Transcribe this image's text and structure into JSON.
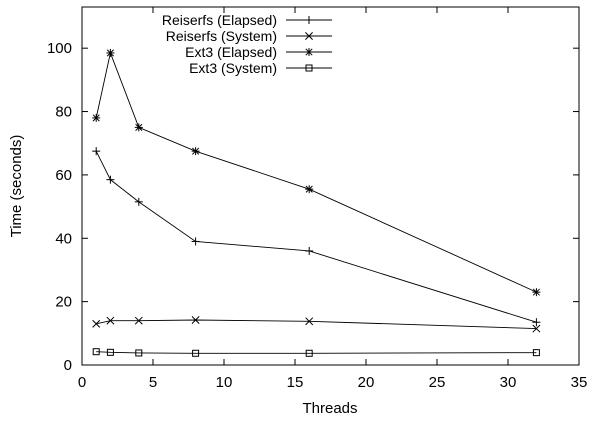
{
  "chart_data": {
    "type": "line",
    "title": "",
    "xlabel": "Threads",
    "ylabel": "Time (seconds)",
    "xlim": [
      0,
      35
    ],
    "ylim": [
      0,
      113
    ],
    "x_ticks": [
      0,
      5,
      10,
      15,
      20,
      25,
      30,
      35
    ],
    "y_ticks": [
      0,
      20,
      40,
      60,
      80,
      100
    ],
    "grid": false,
    "legend_position": "top-right",
    "series": [
      {
        "name": "Reiserfs (Elapsed)",
        "marker": "plus",
        "x": [
          1,
          2,
          4,
          8,
          16,
          32
        ],
        "y": [
          67.5,
          58.5,
          51.5,
          39,
          36,
          13.5
        ]
      },
      {
        "name": "Reiserfs (System)",
        "marker": "cross",
        "x": [
          1,
          2,
          4,
          8,
          16,
          32
        ],
        "y": [
          13,
          14,
          14,
          14.2,
          13.8,
          11.5
        ]
      },
      {
        "name": "Ext3 (Elapsed)",
        "marker": "star",
        "x": [
          1,
          2,
          4,
          8,
          16,
          32
        ],
        "y": [
          78,
          98.5,
          75,
          67.5,
          55.5,
          23
        ]
      },
      {
        "name": "Ext3 (System)",
        "marker": "square",
        "x": [
          1,
          2,
          4,
          8,
          16,
          32
        ],
        "y": [
          4.2,
          4,
          3.8,
          3.7,
          3.7,
          3.9
        ]
      }
    ]
  }
}
